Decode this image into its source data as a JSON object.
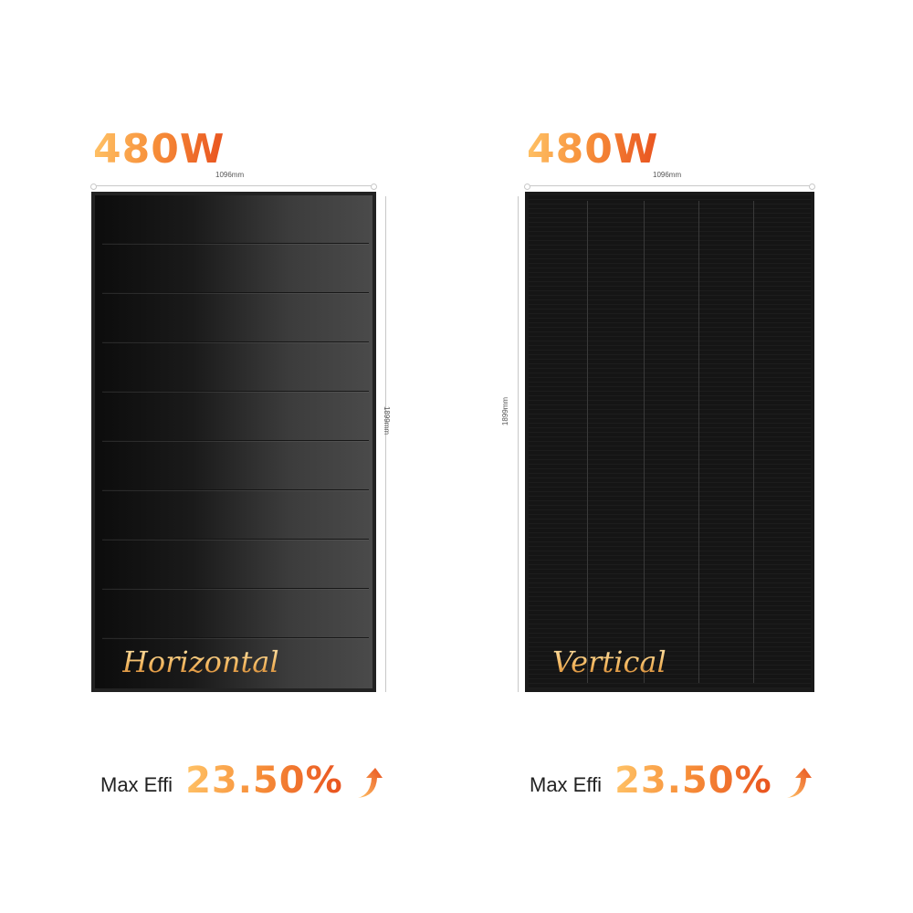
{
  "left": {
    "power": "480W",
    "width_dim": "1096mm",
    "height_dim": "1899mm",
    "style_label": "Horizontal",
    "effi_label": "Max Effi",
    "effi_value": "23.50%",
    "arrow_icon": "arrow-up-icon"
  },
  "right": {
    "power": "480W",
    "width_dim": "1096mm",
    "height_dim": "1899mm",
    "style_label": "Vertical",
    "effi_label": "Max Effi",
    "effi_value": "23.50%",
    "arrow_icon": "arrow-up-icon"
  },
  "colors": {
    "accent_start": "#ffc468",
    "accent_end": "#e8501e",
    "panel": "#111111"
  }
}
